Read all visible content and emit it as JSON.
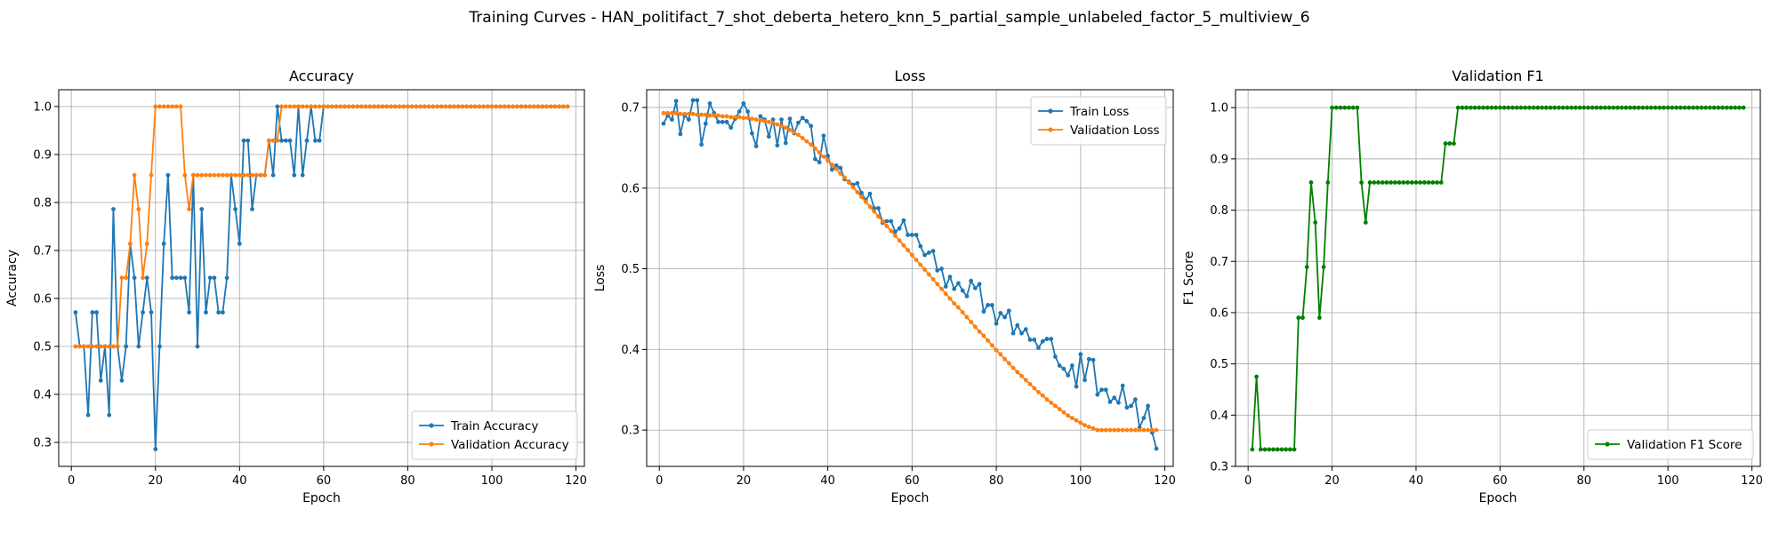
{
  "figure_title": "Training Curves - HAN_politifact_7_shot_deberta_hetero_knn_5_partial_sample_unlabeled_factor_5_multiview_6",
  "chart_data": [
    {
      "type": "line",
      "title": "Accuracy",
      "xlabel": "Epoch",
      "ylabel": "Accuracy",
      "xlim": [
        -3,
        122
      ],
      "ylim": [
        0.25,
        1.035
      ],
      "xticks": [
        0,
        20,
        40,
        60,
        80,
        100,
        120
      ],
      "yticks": [
        0.3,
        0.4,
        0.5,
        0.6,
        0.7,
        0.8,
        0.9,
        1.0
      ],
      "ytick_labels": [
        "0.3",
        "0.4",
        "0.5",
        "0.6",
        "0.7",
        "0.8",
        "0.9",
        "1.0"
      ],
      "grid": true,
      "legend": "lower-right",
      "x_start": 1,
      "series": [
        {
          "name": "Train Accuracy",
          "color": "#1f77b4",
          "values": [
            0.571,
            0.5,
            0.5,
            0.357,
            0.571,
            0.571,
            0.429,
            0.5,
            0.357,
            0.786,
            0.5,
            0.429,
            0.5,
            0.714,
            0.643,
            0.5,
            0.571,
            0.643,
            0.571,
            0.286,
            0.5,
            0.714,
            0.857,
            0.643,
            0.643,
            0.643,
            0.643,
            0.571,
            0.857,
            0.5,
            0.786,
            0.571,
            0.643,
            0.643,
            0.571,
            0.571,
            0.643,
            0.857,
            0.786,
            0.714,
            0.929,
            0.929,
            0.786,
            0.857,
            0.857,
            0.857,
            0.929,
            0.857,
            1.0,
            0.929,
            0.929,
            0.929,
            0.857,
            1.0,
            0.857,
            0.929,
            1.0,
            0.929,
            0.929,
            1.0,
            1.0,
            1.0,
            1.0,
            1.0,
            1.0,
            1.0,
            1.0,
            1.0,
            1.0,
            1.0,
            1.0,
            1.0,
            1.0,
            1.0,
            1.0,
            1.0,
            1.0,
            1.0,
            1.0,
            1.0,
            1.0,
            1.0,
            1.0,
            1.0,
            1.0,
            1.0,
            1.0,
            1.0,
            1.0,
            1.0,
            1.0,
            1.0,
            1.0,
            1.0,
            1.0,
            1.0,
            1.0,
            1.0,
            1.0,
            1.0,
            1.0,
            1.0,
            1.0,
            1.0,
            1.0,
            1.0,
            1.0,
            1.0,
            1.0,
            1.0,
            1.0,
            1.0,
            1.0,
            1.0,
            1.0,
            1.0,
            1.0,
            1.0
          ]
        },
        {
          "name": "Validation Accuracy",
          "color": "#ff7f0e",
          "values": [
            0.5,
            0.5,
            0.5,
            0.5,
            0.5,
            0.5,
            0.5,
            0.5,
            0.5,
            0.5,
            0.5,
            0.643,
            0.643,
            0.714,
            0.857,
            0.786,
            0.643,
            0.714,
            0.857,
            1.0,
            1.0,
            1.0,
            1.0,
            1.0,
            1.0,
            1.0,
            0.857,
            0.786,
            0.857,
            0.857,
            0.857,
            0.857,
            0.857,
            0.857,
            0.857,
            0.857,
            0.857,
            0.857,
            0.857,
            0.857,
            0.857,
            0.857,
            0.857,
            0.857,
            0.857,
            0.857,
            0.929,
            0.929,
            0.929,
            1.0,
            1.0,
            1.0,
            1.0,
            1.0,
            1.0,
            1.0,
            1.0,
            1.0,
            1.0,
            1.0,
            1.0,
            1.0,
            1.0,
            1.0,
            1.0,
            1.0,
            1.0,
            1.0,
            1.0,
            1.0,
            1.0,
            1.0,
            1.0,
            1.0,
            1.0,
            1.0,
            1.0,
            1.0,
            1.0,
            1.0,
            1.0,
            1.0,
            1.0,
            1.0,
            1.0,
            1.0,
            1.0,
            1.0,
            1.0,
            1.0,
            1.0,
            1.0,
            1.0,
            1.0,
            1.0,
            1.0,
            1.0,
            1.0,
            1.0,
            1.0,
            1.0,
            1.0,
            1.0,
            1.0,
            1.0,
            1.0,
            1.0,
            1.0,
            1.0,
            1.0,
            1.0,
            1.0,
            1.0,
            1.0,
            1.0,
            1.0,
            1.0,
            1.0
          ]
        }
      ]
    },
    {
      "type": "line",
      "title": "Loss",
      "xlabel": "Epoch",
      "ylabel": "Loss",
      "xlim": [
        -3,
        122
      ],
      "ylim": [
        0.255,
        0.722
      ],
      "xticks": [
        0,
        20,
        40,
        60,
        80,
        100,
        120
      ],
      "yticks": [
        0.3,
        0.4,
        0.5,
        0.6,
        0.7
      ],
      "ytick_labels": [
        "0.3",
        "0.4",
        "0.5",
        "0.6",
        "0.7"
      ],
      "grid": true,
      "legend": "top-right",
      "x_start": 1,
      "series": [
        {
          "name": "Train Loss",
          "color": "#1f77b4",
          "values": [
            0.68,
            0.69,
            0.685,
            0.708,
            0.667,
            0.69,
            0.685,
            0.709,
            0.709,
            0.654,
            0.68,
            0.705,
            0.693,
            0.682,
            0.682,
            0.682,
            0.675,
            0.686,
            0.695,
            0.705,
            0.695,
            0.668,
            0.652,
            0.689,
            0.685,
            0.664,
            0.685,
            0.653,
            0.685,
            0.656,
            0.686,
            0.668,
            0.681,
            0.687,
            0.683,
            0.677,
            0.636,
            0.632,
            0.665,
            0.64,
            0.623,
            0.628,
            0.625,
            0.611,
            0.608,
            0.604,
            0.606,
            0.594,
            0.585,
            0.593,
            0.575,
            0.575,
            0.557,
            0.559,
            0.559,
            0.546,
            0.55,
            0.56,
            0.542,
            0.542,
            0.542,
            0.528,
            0.517,
            0.52,
            0.522,
            0.498,
            0.5,
            0.478,
            0.49,
            0.475,
            0.482,
            0.473,
            0.466,
            0.485,
            0.476,
            0.481,
            0.447,
            0.455,
            0.455,
            0.432,
            0.445,
            0.44,
            0.448,
            0.42,
            0.43,
            0.42,
            0.425,
            0.412,
            0.412,
            0.402,
            0.41,
            0.413,
            0.413,
            0.391,
            0.38,
            0.376,
            0.368,
            0.38,
            0.354,
            0.394,
            0.362,
            0.388,
            0.387,
            0.344,
            0.35,
            0.35,
            0.335,
            0.34,
            0.334,
            0.355,
            0.328,
            0.33,
            0.338,
            0.303,
            0.315,
            0.33,
            0.297,
            0.277
          ]
        },
        {
          "name": "Validation Loss",
          "color": "#ff7f0e",
          "values": [
            0.693,
            0.693,
            0.693,
            0.693,
            0.692,
            0.692,
            0.692,
            0.692,
            0.691,
            0.691,
            0.691,
            0.69,
            0.69,
            0.69,
            0.689,
            0.689,
            0.688,
            0.688,
            0.688,
            0.687,
            0.687,
            0.686,
            0.685,
            0.684,
            0.683,
            0.682,
            0.681,
            0.679,
            0.677,
            0.675,
            0.672,
            0.669,
            0.666,
            0.662,
            0.658,
            0.654,
            0.649,
            0.644,
            0.639,
            0.634,
            0.629,
            0.624,
            0.618,
            0.613,
            0.607,
            0.601,
            0.595,
            0.589,
            0.583,
            0.577,
            0.571,
            0.565,
            0.559,
            0.553,
            0.547,
            0.541,
            0.535,
            0.529,
            0.523,
            0.517,
            0.511,
            0.505,
            0.499,
            0.493,
            0.487,
            0.481,
            0.475,
            0.469,
            0.463,
            0.457,
            0.452,
            0.446,
            0.44,
            0.434,
            0.428,
            0.422,
            0.417,
            0.411,
            0.405,
            0.399,
            0.394,
            0.388,
            0.383,
            0.377,
            0.372,
            0.367,
            0.362,
            0.357,
            0.352,
            0.347,
            0.343,
            0.338,
            0.334,
            0.33,
            0.326,
            0.322,
            0.318,
            0.315,
            0.312,
            0.309,
            0.306,
            0.304,
            0.302,
            0.3,
            0.3,
            0.3,
            0.3,
            0.3,
            0.3,
            0.3,
            0.3,
            0.3,
            0.3,
            0.3,
            0.3,
            0.3,
            0.3,
            0.3
          ]
        }
      ]
    },
    {
      "type": "line",
      "title": "Validation F1",
      "xlabel": "Epoch",
      "ylabel": "F1 Score",
      "xlim": [
        -3,
        122
      ],
      "ylim": [
        0.3,
        1.035
      ],
      "xticks": [
        0,
        20,
        40,
        60,
        80,
        100,
        120
      ],
      "yticks": [
        0.3,
        0.4,
        0.5,
        0.6,
        0.7,
        0.8,
        0.9,
        1.0
      ],
      "ytick_labels": [
        "0.3",
        "0.4",
        "0.5",
        "0.6",
        "0.7",
        "0.8",
        "0.9",
        "1.0"
      ],
      "grid": true,
      "legend": "lower-right",
      "x_start": 1,
      "series": [
        {
          "name": "Validation F1 Score",
          "color": "#008000",
          "values": [
            0.333,
            0.475,
            0.333,
            0.333,
            0.333,
            0.333,
            0.333,
            0.333,
            0.333,
            0.333,
            0.333,
            0.59,
            0.59,
            0.689,
            0.854,
            0.776,
            0.59,
            0.689,
            0.854,
            1.0,
            1.0,
            1.0,
            1.0,
            1.0,
            1.0,
            1.0,
            0.854,
            0.776,
            0.854,
            0.854,
            0.854,
            0.854,
            0.854,
            0.854,
            0.854,
            0.854,
            0.854,
            0.854,
            0.854,
            0.854,
            0.854,
            0.854,
            0.854,
            0.854,
            0.854,
            0.854,
            0.93,
            0.93,
            0.93,
            1.0,
            1.0,
            1.0,
            1.0,
            1.0,
            1.0,
            1.0,
            1.0,
            1.0,
            1.0,
            1.0,
            1.0,
            1.0,
            1.0,
            1.0,
            1.0,
            1.0,
            1.0,
            1.0,
            1.0,
            1.0,
            1.0,
            1.0,
            1.0,
            1.0,
            1.0,
            1.0,
            1.0,
            1.0,
            1.0,
            1.0,
            1.0,
            1.0,
            1.0,
            1.0,
            1.0,
            1.0,
            1.0,
            1.0,
            1.0,
            1.0,
            1.0,
            1.0,
            1.0,
            1.0,
            1.0,
            1.0,
            1.0,
            1.0,
            1.0,
            1.0,
            1.0,
            1.0,
            1.0,
            1.0,
            1.0,
            1.0,
            1.0,
            1.0,
            1.0,
            1.0,
            1.0,
            1.0,
            1.0,
            1.0,
            1.0,
            1.0,
            1.0,
            1.0
          ]
        }
      ]
    }
  ]
}
